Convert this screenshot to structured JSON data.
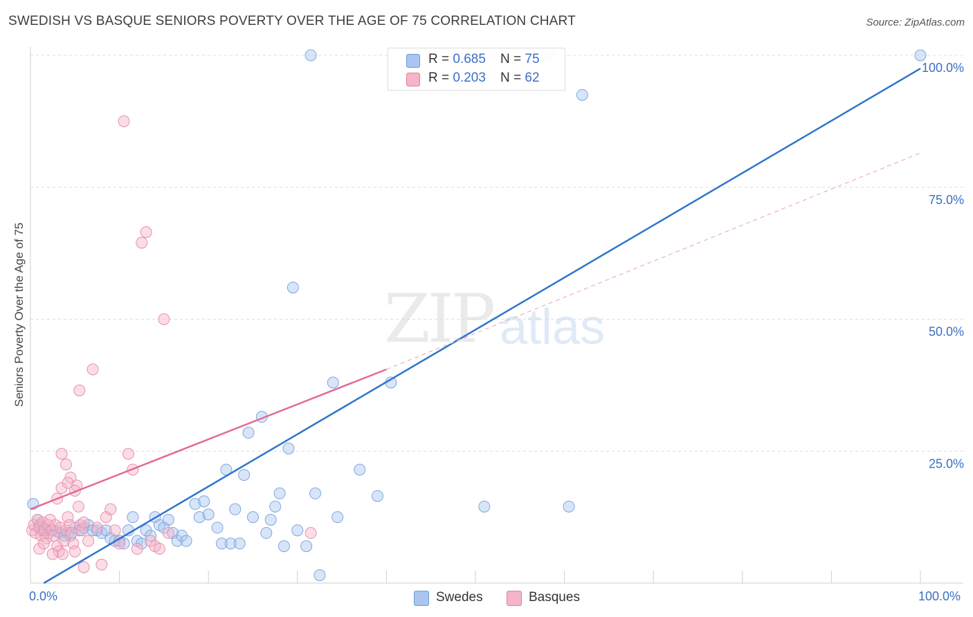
{
  "header": {
    "title": "SWEDISH VS BASQUE SENIORS POVERTY OVER THE AGE OF 75 CORRELATION CHART",
    "source": "Source: ZipAtlas.com"
  },
  "watermark": {
    "zip": "ZIP",
    "atlas": "atlas"
  },
  "colors": {
    "swedes_fill": "#a8c6ef",
    "swedes_line": "#2f74cc",
    "basques_fill": "#f5b4c8",
    "basques_line": "#e26a93",
    "tick_text": "#3a6fc4",
    "grid": "#dcdcdc"
  },
  "stats_legend": {
    "swedes": {
      "r_label": "R = ",
      "r_value": "0.685",
      "n_label": "N = ",
      "n_value": "75"
    },
    "basques": {
      "r_label": "R = ",
      "r_value": "0.203",
      "n_label": "N = ",
      "n_value": "62"
    }
  },
  "chart_data": {
    "type": "scatter",
    "title": "SWEDISH VS BASQUE SENIORS POVERTY OVER THE AGE OF 75 CORRELATION CHART",
    "xlabel": "",
    "ylabel": "Seniors Poverty Over the Age of 75",
    "xlim": [
      0,
      100
    ],
    "ylim": [
      0,
      100
    ],
    "x_tick_labels": [
      "0.0%",
      "100.0%"
    ],
    "y_tick_labels": [
      "25.0%",
      "50.0%",
      "75.0%",
      "100.0%"
    ],
    "y_ticks": [
      25,
      50,
      75,
      100
    ],
    "grid": true,
    "legend_position": "bottom-center",
    "series": [
      {
        "name": "Swedes",
        "r": 0.685,
        "n": 75,
        "trend": {
          "x": [
            1.5,
            100
          ],
          "y": [
            0,
            97.5
          ],
          "style": "solid"
        },
        "points": [
          [
            0.3,
            15
          ],
          [
            0.8,
            12
          ],
          [
            1,
            11
          ],
          [
            1.2,
            10
          ],
          [
            1.5,
            10
          ],
          [
            2,
            9.5
          ],
          [
            2.5,
            10
          ],
          [
            3,
            9.8
          ],
          [
            3.3,
            9.5
          ],
          [
            3.8,
            9
          ],
          [
            4.2,
            9.5
          ],
          [
            4.5,
            9
          ],
          [
            5,
            10.5
          ],
          [
            5.5,
            10
          ],
          [
            6,
            10.5
          ],
          [
            6.5,
            11
          ],
          [
            7,
            10
          ],
          [
            7.5,
            10
          ],
          [
            8,
            9.5
          ],
          [
            8.5,
            10
          ],
          [
            9,
            8.5
          ],
          [
            9.5,
            8
          ],
          [
            10,
            8
          ],
          [
            10.5,
            7.5
          ],
          [
            11,
            10
          ],
          [
            11.5,
            12.5
          ],
          [
            12,
            8
          ],
          [
            12.5,
            7.5
          ],
          [
            13,
            10
          ],
          [
            13.5,
            9
          ],
          [
            14,
            12.5
          ],
          [
            14.5,
            11
          ],
          [
            15,
            10.5
          ],
          [
            15.5,
            12
          ],
          [
            16,
            9.5
          ],
          [
            16.5,
            8
          ],
          [
            17,
            9
          ],
          [
            17.5,
            8
          ],
          [
            18.5,
            15
          ],
          [
            19,
            12.5
          ],
          [
            19.5,
            15.5
          ],
          [
            20,
            13
          ],
          [
            21,
            10.5
          ],
          [
            21.5,
            7.5
          ],
          [
            22,
            21.5
          ],
          [
            22.5,
            7.5
          ],
          [
            23,
            14
          ],
          [
            23.5,
            7.5
          ],
          [
            24,
            20.5
          ],
          [
            24.5,
            28.5
          ],
          [
            25,
            12.5
          ],
          [
            26,
            31.5
          ],
          [
            26.5,
            9.5
          ],
          [
            27,
            12
          ],
          [
            27.5,
            14.5
          ],
          [
            28,
            17
          ],
          [
            28.5,
            7
          ],
          [
            29,
            25.5
          ],
          [
            30,
            10
          ],
          [
            31,
            7
          ],
          [
            31.5,
            100
          ],
          [
            32,
            17
          ],
          [
            32.5,
            1.5
          ],
          [
            34,
            38
          ],
          [
            34.5,
            12.5
          ],
          [
            37,
            21.5
          ],
          [
            39,
            16.5
          ],
          [
            40.5,
            38
          ],
          [
            51,
            14.5
          ],
          [
            57.5,
            100
          ],
          [
            58.5,
            100
          ],
          [
            60.5,
            14.5
          ],
          [
            62,
            92.5
          ],
          [
            100,
            100
          ],
          [
            29.5,
            56
          ]
        ]
      },
      {
        "name": "Basques",
        "r": 0.203,
        "n": 62,
        "trend": {
          "x": [
            0,
            40
          ],
          "y": [
            14,
            40.5
          ],
          "style": "solid"
        },
        "trend_extension": {
          "x": [
            40,
            100
          ],
          "y": [
            40.5,
            81.5
          ],
          "style": "dashed"
        },
        "points": [
          [
            0.2,
            10
          ],
          [
            0.4,
            11
          ],
          [
            0.6,
            9.5
          ],
          [
            0.8,
            12
          ],
          [
            1,
            10.5
          ],
          [
            1.2,
            9
          ],
          [
            1.4,
            11.5
          ],
          [
            1.6,
            10
          ],
          [
            1.8,
            8.5
          ],
          [
            2,
            11
          ],
          [
            2.2,
            12
          ],
          [
            2.4,
            10
          ],
          [
            2.6,
            9
          ],
          [
            2.8,
            11
          ],
          [
            3,
            7
          ],
          [
            3.2,
            6
          ],
          [
            3.4,
            10.5
          ],
          [
            3.6,
            5.5
          ],
          [
            3.8,
            8
          ],
          [
            4,
            10
          ],
          [
            4.2,
            12.5
          ],
          [
            4.4,
            11
          ],
          [
            4.6,
            9.5
          ],
          [
            4.8,
            7.5
          ],
          [
            5,
            6
          ],
          [
            5.2,
            18.5
          ],
          [
            5.4,
            14.5
          ],
          [
            5.6,
            11
          ],
          [
            5.8,
            10
          ],
          [
            6,
            3
          ],
          [
            1,
            6.5
          ],
          [
            1.5,
            7.5
          ],
          [
            2.5,
            5.5
          ],
          [
            3,
            16
          ],
          [
            3.5,
            18
          ],
          [
            3.5,
            24.5
          ],
          [
            4,
            22.5
          ],
          [
            4.5,
            20
          ],
          [
            5,
            17.5
          ],
          [
            5.5,
            36.5
          ],
          [
            6,
            11.5
          ],
          [
            6.5,
            8
          ],
          [
            7,
            40.5
          ],
          [
            7.5,
            10.5
          ],
          [
            8,
            3.5
          ],
          [
            8.5,
            12.5
          ],
          [
            9,
            14
          ],
          [
            9.5,
            10
          ],
          [
            10,
            7.5
          ],
          [
            10.5,
            87.5
          ],
          [
            11,
            24.5
          ],
          [
            11.5,
            21.5
          ],
          [
            12,
            6.5
          ],
          [
            12.5,
            64.5
          ],
          [
            13,
            66.5
          ],
          [
            13.5,
            8
          ],
          [
            14,
            7
          ],
          [
            14.5,
            6.5
          ],
          [
            15,
            50
          ],
          [
            15.5,
            9.5
          ],
          [
            31.5,
            9.5
          ],
          [
            4.2,
            19
          ]
        ]
      }
    ]
  }
}
